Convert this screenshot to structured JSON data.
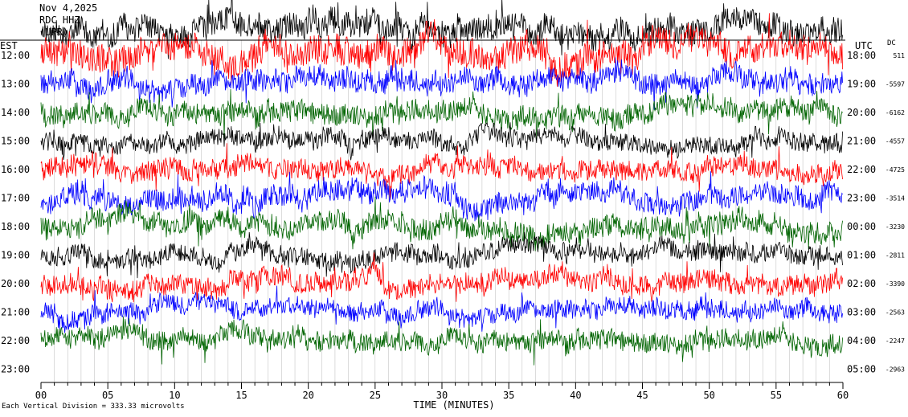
{
  "header": {
    "date": "Nov 4,2025",
    "station": "RDC HHZ",
    "network": "(UPR)"
  },
  "corners": {
    "left_tz": "EST",
    "right_tz": "UTC",
    "dc_label": "DC"
  },
  "footer": {
    "scale_note": "Each Vertical Division = 333.33 microvolts"
  },
  "colors": {
    "black": "#000000",
    "red": "#ff0000",
    "blue": "#0000ff",
    "green": "#006400",
    "axis": "#000000",
    "minute_line": "#808080"
  },
  "chart_data": {
    "type": "line",
    "title": "",
    "xlabel": "TIME (MINUTES)",
    "ylabel": "",
    "xlim": [
      0,
      60
    ],
    "x_ticks": [
      "00",
      "05",
      "10",
      "15",
      "20",
      "25",
      "30",
      "35",
      "40",
      "45",
      "50",
      "55",
      "60"
    ],
    "rows": [
      {
        "est": "12:00",
        "utc": "18:00",
        "dc": "511",
        "color": "red",
        "amp": 1.6
      },
      {
        "est": "13:00",
        "utc": "19:00",
        "dc": "-5597",
        "color": "blue",
        "amp": 1.2
      },
      {
        "est": "14:00",
        "utc": "20:00",
        "dc": "-6162",
        "color": "green",
        "amp": 1.2
      },
      {
        "est": "15:00",
        "utc": "21:00",
        "dc": "-4557",
        "color": "black",
        "amp": 1.0
      },
      {
        "est": "16:00",
        "utc": "22:00",
        "dc": "-4725",
        "color": "red",
        "amp": 1.1
      },
      {
        "est": "17:00",
        "utc": "23:00",
        "dc": "-3514",
        "color": "blue",
        "amp": 1.2
      },
      {
        "est": "18:00",
        "utc": "00:00",
        "dc": "-3230",
        "color": "green",
        "amp": 1.2
      },
      {
        "est": "19:00",
        "utc": "01:00",
        "dc": "-2811",
        "color": "black",
        "amp": 1.0
      },
      {
        "est": "20:00",
        "utc": "02:00",
        "dc": "-3390",
        "color": "red",
        "amp": 1.1
      },
      {
        "est": "21:00",
        "utc": "03:00",
        "dc": "-2563",
        "color": "blue",
        "amp": 1.0
      },
      {
        "est": "22:00",
        "utc": "04:00",
        "dc": "-2247",
        "color": "green",
        "amp": 1.1
      },
      {
        "est": "23:00",
        "utc": "05:00",
        "dc": "-2963",
        "color": "black",
        "amp": 0.0
      }
    ],
    "pre_trace": {
      "color": "black",
      "amp": 1.4
    },
    "grid": false,
    "legend": "none"
  }
}
